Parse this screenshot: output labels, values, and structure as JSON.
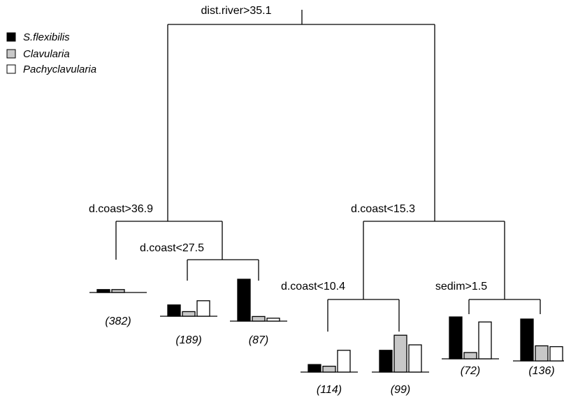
{
  "legend": [
    {
      "name": "S.flexibilis",
      "color": "#000000"
    },
    {
      "name": "Clavularia",
      "color": "#c8c8c8"
    },
    {
      "name": "Pachyclavularia",
      "color": "#ffffff"
    }
  ],
  "splits": {
    "root": "dist.river>35.1",
    "left": "d.coast>36.9",
    "left_right": "d.coast<27.5",
    "right": "d.coast<15.3",
    "right_left": "d.coast<10.4",
    "right_right": "sedim>1.5"
  },
  "leaves": [
    {
      "count": "(382)",
      "values": [
        0.07,
        0.07,
        0.0
      ]
    },
    {
      "count": "(189)",
      "values": [
        0.27,
        0.11,
        0.37
      ]
    },
    {
      "count": "(87)",
      "values": [
        1.0,
        0.11,
        0.07
      ]
    },
    {
      "count": "(114)",
      "values": [
        0.18,
        0.14,
        0.52
      ]
    },
    {
      "count": "(99)",
      "values": [
        0.52,
        0.88,
        0.65
      ]
    },
    {
      "count": "(72)",
      "values": [
        1.0,
        0.15,
        0.88
      ]
    },
    {
      "count": "(136)",
      "values": [
        1.0,
        0.36,
        0.34
      ]
    }
  ]
}
